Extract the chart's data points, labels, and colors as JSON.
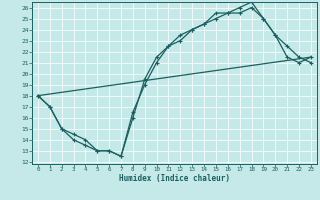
{
  "title": "",
  "xlabel": "Humidex (Indice chaleur)",
  "ylabel": "",
  "xlim": [
    -0.5,
    23.5
  ],
  "ylim": [
    11.8,
    26.5
  ],
  "xticks": [
    0,
    1,
    2,
    3,
    4,
    5,
    6,
    7,
    8,
    9,
    10,
    11,
    12,
    13,
    14,
    15,
    16,
    17,
    18,
    19,
    20,
    21,
    22,
    23
  ],
  "yticks": [
    12,
    13,
    14,
    15,
    16,
    17,
    18,
    19,
    20,
    21,
    22,
    23,
    24,
    25,
    26
  ],
  "bg_color": "#c5e8e8",
  "line_color": "#1a6060",
  "line1_x": [
    0,
    1,
    2,
    3,
    4,
    5,
    6,
    7,
    8,
    9,
    10,
    11,
    12,
    13,
    14,
    15,
    16,
    17,
    18,
    19,
    20,
    21,
    22,
    23
  ],
  "line1_y": [
    18,
    17,
    15,
    14.5,
    14,
    13,
    13,
    12.5,
    16,
    19.5,
    21.5,
    22.5,
    23.5,
    24,
    24.5,
    25,
    25.5,
    25.5,
    26,
    25,
    23.5,
    21.5,
    21,
    21.5
  ],
  "line2_x": [
    0,
    1,
    2,
    3,
    4,
    5,
    6,
    7,
    8,
    9,
    10,
    11,
    12,
    13,
    14,
    15,
    16,
    17,
    18,
    19,
    20,
    21,
    22,
    23
  ],
  "line2_y": [
    18,
    17,
    15,
    14,
    13.5,
    13,
    13,
    12.5,
    16.5,
    19,
    21,
    22.5,
    23,
    24,
    24.5,
    25.5,
    25.5,
    26,
    26.5,
    25,
    23.5,
    22.5,
    21.5,
    21
  ],
  "line3_x": [
    0,
    23
  ],
  "line3_y": [
    18,
    21.5
  ],
  "figsize": [
    3.2,
    2.0
  ],
  "dpi": 100
}
